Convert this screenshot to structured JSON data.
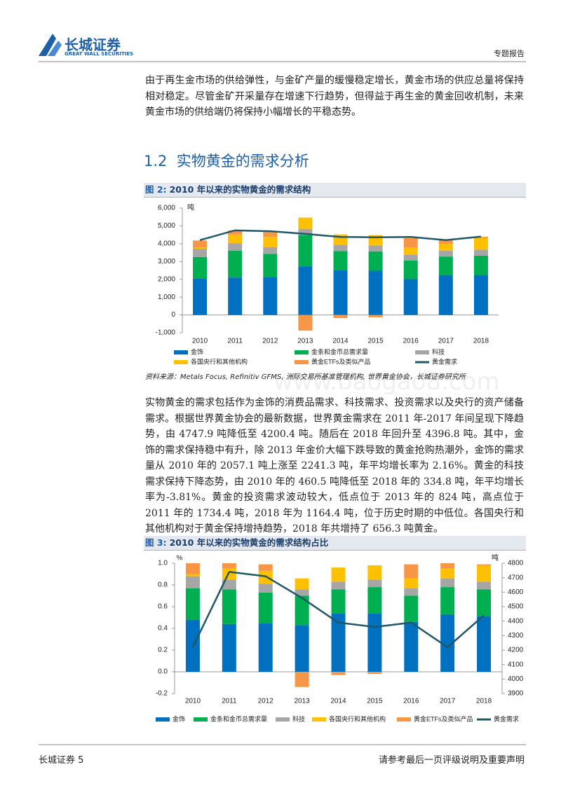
{
  "header": {
    "brand": "长城证券",
    "brand_en": "GREAT WALL SECURITIES",
    "doc_type": "专题报告"
  },
  "paragraphs": [
    "由于再生金市场的供给弹性，与金矿产量的缓慢稳定增长，黄金市场的供应总量将保持相对稳定。尽管金矿开采量存在增速下行趋势，但得益于再生金的黄金回收机制，未来黄金市场的供给端仍将保持小幅增长的平稳态势。",
    "实物黄金的需求包括作为金饰的消费品需求、科技需求、投资需求以及央行的资产储备需求。根据世界黄金协会的最新数据，世界黄金需求在 2011 年-2017 年间呈现下降趋势，由 4747.9 吨降低至 4200.4 吨。随后在 2018 年回升至 4396.8 吨。其中，金饰的需求保持稳中有升，除 2013 年金价大幅下跌导致的黄金抢购热潮外，金饰的需求量从 2010 年的 2057.1 吨上涨至 2241.3 吨，年平均增长率为 2.16%。黄金的科技需求保持下降态势，由 2010 年的 460.5 吨降低至 2018 年的 334.8 吨，年平均增长率为-3.81%。黄金的投资需求波动较大，低点位于 2013 年的 824 吨，高点位于 2011 年的 1734.4 吨，2018 年为 1164.4 吨，位于历史时期的中低位。各国央行和其他机构对于黄金保持增持趋势，2018 年共增持了 656.3 吨黄金。"
  ],
  "section": {
    "number": "1.2",
    "title": "实物黄金的需求分析"
  },
  "figures": [
    {
      "label": "图 2:",
      "caption": "2010 年以来的实物黄金的需求结构"
    },
    {
      "label": "图 3:",
      "caption": "2010 年以来的实物黄金的需求结构占比"
    }
  ],
  "source": "资料来源：Metals Focus, Refinitiv GFMS, 洲际交易所基准管理机构, 世界黄金协会，长城证券研究所",
  "watermark": "www.baogao8.com",
  "footer": {
    "left": "长城证券 5",
    "right": "请参考最后一页评级说明及重要声明"
  },
  "chart_data": [
    {
      "type": "bar",
      "stacked": true,
      "ylabel": "吨",
      "categories": [
        "2010",
        "2011",
        "2012",
        "2013",
        "2014",
        "2015",
        "2016",
        "2017",
        "2018"
      ],
      "ylim": [
        -1000,
        6000
      ],
      "yticks": [
        {
          "value": -1000,
          "label": "-1,000"
        },
        0,
        {
          "value": 1000,
          "label": "1,000"
        },
        {
          "value": 2000,
          "label": "2,000"
        },
        {
          "value": 3000,
          "label": "3,000"
        },
        {
          "value": 4000,
          "label": "4,000"
        },
        {
          "value": 5000,
          "label": "5,000"
        },
        {
          "value": 6000,
          "label": "6,000"
        }
      ],
      "series": [
        {
          "name": "金饰",
          "color": "#0070c0",
          "values": [
            2057.1,
            2100,
            2130,
            2730,
            2530,
            2480,
            2010,
            2240,
            2241.3
          ]
        },
        {
          "name": "金条和金币总需求量",
          "color": "#00b050",
          "values": [
            1200,
            1500,
            1300,
            1750,
            1060,
            1090,
            1050,
            1040,
            1090
          ]
        },
        {
          "name": "科技",
          "color": "#a6a6a6",
          "values": [
            460.5,
            430,
            380,
            355,
            350,
            330,
            320,
            330,
            334.8
          ]
        },
        {
          "name": "各国央行和其他机构",
          "color": "#ffc000",
          "values": [
            80,
            480,
            570,
            630,
            580,
            580,
            390,
            380,
            656.3
          ]
        },
        {
          "name": "黄金ETFs及类似产品",
          "color": "#f79646",
          "values": [
            380,
            240,
            280,
            -880,
            -180,
            -130,
            540,
            200,
            70
          ]
        },
        {
          "name": "黄金需求",
          "color": "#215868",
          "type": "line",
          "values": [
            4200,
            4747.9,
            4700,
            4550,
            4380,
            4360,
            4380,
            4200.4,
            4396.8
          ]
        }
      ]
    },
    {
      "type": "bar",
      "stacked": true,
      "ylabel": "%",
      "y2label": "吨",
      "categories": [
        "2010",
        "2011",
        "2012",
        "2013",
        "2014",
        "2015",
        "2016",
        "2017",
        "2018"
      ],
      "ylim": [
        -0.2,
        1.0
      ],
      "yticks": [
        -0.2,
        {
          "value": 0,
          "label": "0.0"
        },
        0.2,
        0.4,
        0.6,
        0.8,
        {
          "value": 1,
          "label": "1.0"
        }
      ],
      "y2lim": [
        3900,
        4800
      ],
      "y2ticks": [
        3900,
        4000,
        4100,
        4200,
        4300,
        4400,
        4500,
        4600,
        4700,
        4800
      ],
      "series": [
        {
          "name": "金饰",
          "color": "#0070c0",
          "values": [
            0.48,
            0.44,
            0.45,
            0.43,
            0.54,
            0.54,
            0.46,
            0.53,
            0.51
          ]
        },
        {
          "name": "金条和金币总需求量",
          "color": "#00b050",
          "values": [
            0.29,
            0.32,
            0.28,
            0.27,
            0.22,
            0.24,
            0.24,
            0.25,
            0.25
          ]
        },
        {
          "name": "科技",
          "color": "#a6a6a6",
          "values": [
            0.11,
            0.09,
            0.08,
            0.06,
            0.07,
            0.07,
            0.07,
            0.08,
            0.07
          ]
        },
        {
          "name": "各国央行和其他机构",
          "color": "#ffc000",
          "values": [
            0.02,
            0.1,
            0.12,
            0.1,
            0.13,
            0.13,
            0.09,
            0.09,
            0.15
          ]
        },
        {
          "name": "黄金ETFs及类似产品",
          "color": "#f79646",
          "values": [
            0.1,
            0.05,
            0.06,
            -0.14,
            -0.03,
            -0.02,
            0.13,
            0.05,
            0.01
          ]
        },
        {
          "name": "黄金需求",
          "color": "#215868",
          "type": "line",
          "axis": "y2",
          "values": [
            4220,
            4740,
            4710,
            4560,
            4390,
            4360,
            4390,
            4220,
            4440
          ]
        }
      ]
    }
  ]
}
